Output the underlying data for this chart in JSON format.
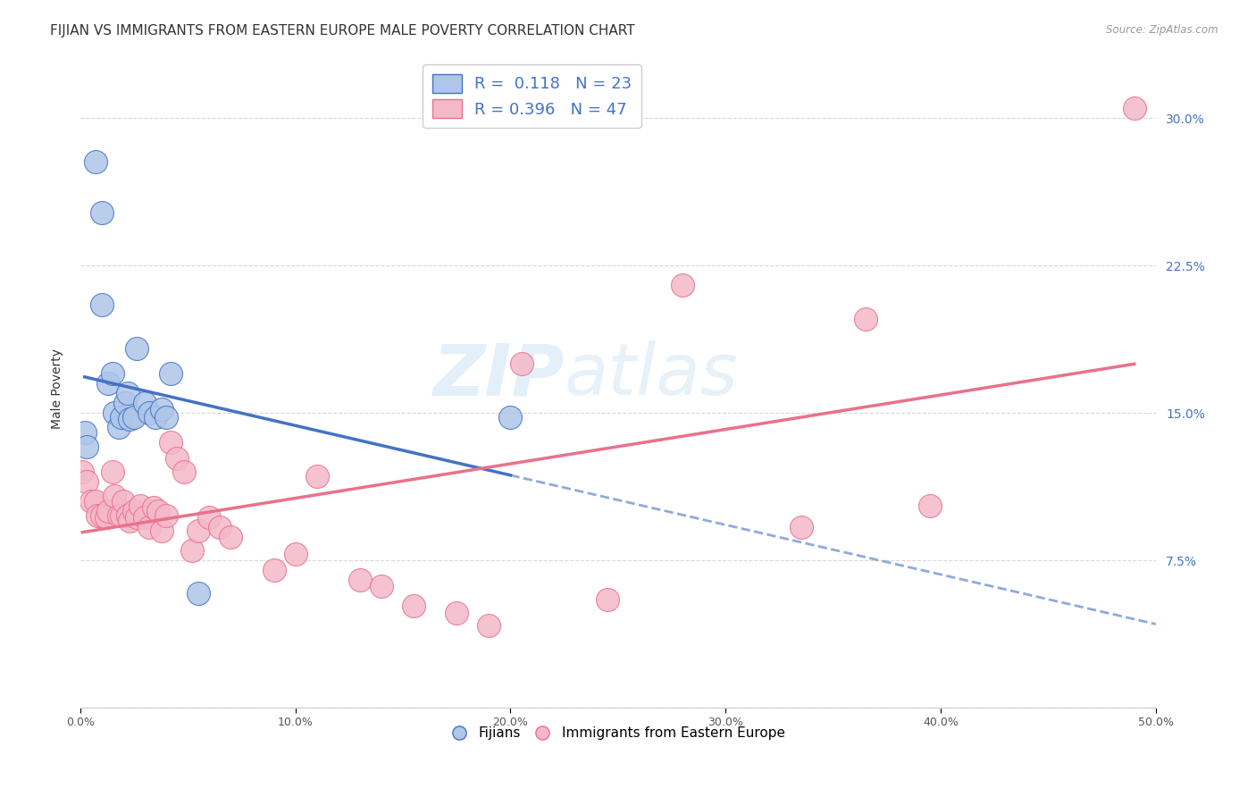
{
  "title": "FIJIAN VS IMMIGRANTS FROM EASTERN EUROPE MALE POVERTY CORRELATION CHART",
  "source": "Source: ZipAtlas.com",
  "ylabel": "Male Poverty",
  "watermark_zip": "ZIP",
  "watermark_atlas": "atlas",
  "xlim": [
    0.0,
    0.5
  ],
  "ylim": [
    0.0,
    0.325
  ],
  "yticks": [
    0.0,
    0.075,
    0.15,
    0.225,
    0.3
  ],
  "xticks": [
    0.0,
    0.1,
    0.2,
    0.3,
    0.4,
    0.5
  ],
  "fijians_x": [
    0.002,
    0.003,
    0.007,
    0.01,
    0.01,
    0.013,
    0.015,
    0.016,
    0.018,
    0.019,
    0.021,
    0.022,
    0.023,
    0.025,
    0.026,
    0.03,
    0.032,
    0.035,
    0.038,
    0.04,
    0.042,
    0.2,
    0.055
  ],
  "fijians_y": [
    0.14,
    0.133,
    0.278,
    0.252,
    0.205,
    0.165,
    0.17,
    0.15,
    0.143,
    0.148,
    0.155,
    0.16,
    0.147,
    0.148,
    0.183,
    0.155,
    0.15,
    0.148,
    0.152,
    0.148,
    0.17,
    0.148,
    0.058
  ],
  "eastern_x": [
    0.001,
    0.003,
    0.005,
    0.007,
    0.008,
    0.01,
    0.012,
    0.013,
    0.015,
    0.016,
    0.018,
    0.019,
    0.02,
    0.022,
    0.023,
    0.025,
    0.026,
    0.028,
    0.03,
    0.032,
    0.034,
    0.036,
    0.038,
    0.04,
    0.042,
    0.045,
    0.048,
    0.052,
    0.055,
    0.06,
    0.065,
    0.07,
    0.09,
    0.1,
    0.11,
    0.13,
    0.14,
    0.155,
    0.175,
    0.19,
    0.205,
    0.245,
    0.28,
    0.335,
    0.365,
    0.395,
    0.49
  ],
  "eastern_y": [
    0.12,
    0.115,
    0.105,
    0.105,
    0.098,
    0.098,
    0.097,
    0.1,
    0.12,
    0.108,
    0.098,
    0.098,
    0.105,
    0.098,
    0.095,
    0.1,
    0.097,
    0.103,
    0.097,
    0.092,
    0.102,
    0.1,
    0.09,
    0.098,
    0.135,
    0.127,
    0.12,
    0.08,
    0.09,
    0.097,
    0.092,
    0.087,
    0.07,
    0.078,
    0.118,
    0.065,
    0.062,
    0.052,
    0.048,
    0.042,
    0.175,
    0.055,
    0.215,
    0.092,
    0.198,
    0.103,
    0.305
  ],
  "fijian_color": "#aec6e8",
  "eastern_color": "#f4b8c8",
  "fijian_line_color": "#4472c4",
  "eastern_line_color": "#e8728c",
  "fijian_R": 0.118,
  "fijian_N": 23,
  "eastern_R": 0.396,
  "eastern_N": 47,
  "background_color": "#ffffff",
  "grid_color": "#d8d8d8",
  "title_fontsize": 11,
  "axis_label_fontsize": 10,
  "tick_fontsize": 9,
  "legend_fontsize": 13
}
